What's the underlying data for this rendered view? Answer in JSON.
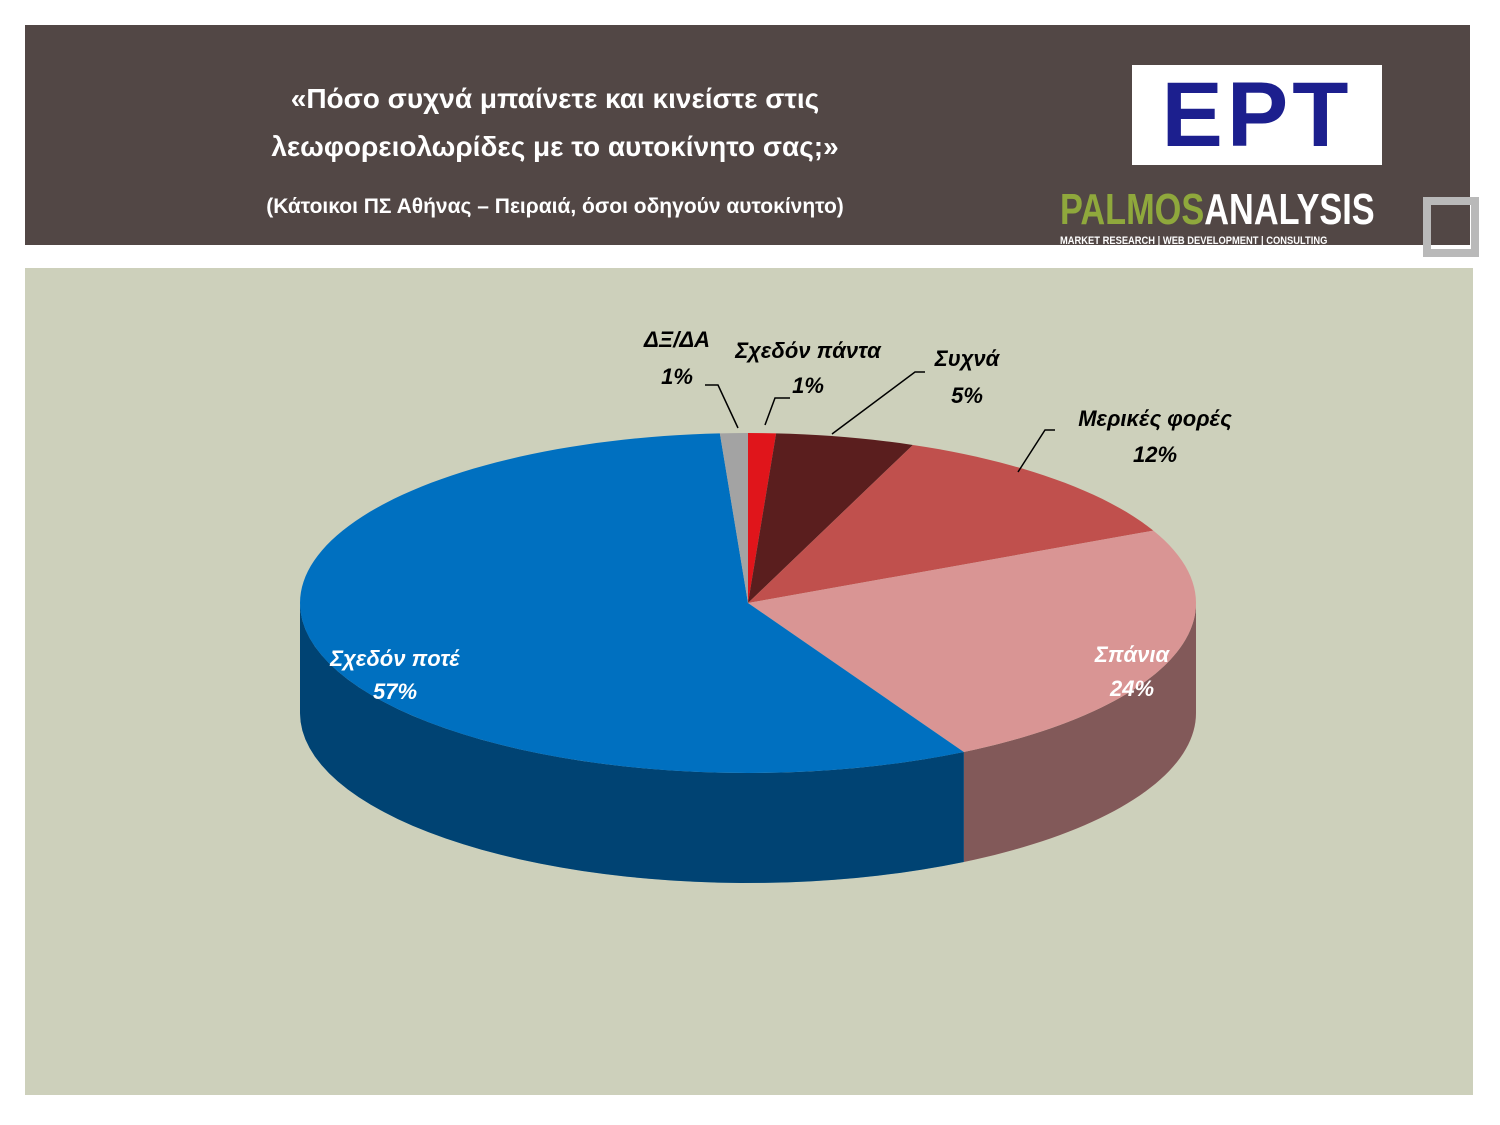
{
  "header": {
    "title": "«Πόσο συχνά μπαίνετε και κινείστε στις λεωφορειολωρίδες με το αυτοκίνητο σας;»",
    "subtitle": "(Κάτοικοι ΠΣ Αθήνας – Πειραιά, όσοι οδηγούν αυτοκίνητο)"
  },
  "logos": {
    "ert": "ΕΡΤ",
    "palmos": "PALMOS",
    "analysis": "ANALYSIS",
    "tagline": "MARKET RESEARCH | WEB DEVELOPMENT | CONSULTING"
  },
  "chart_data": {
    "type": "pie",
    "categories": [
      "Σχεδόν πάντα",
      "Συχνά",
      "Μερικές φορές",
      "Σπάνια",
      "Σχεδόν ποτέ",
      "ΔΞ/ΔΑ"
    ],
    "values": [
      1,
      5,
      12,
      24,
      57,
      1
    ],
    "value_labels": [
      "1%",
      "5%",
      "12%",
      "24%",
      "57%",
      "1%"
    ],
    "colors": [
      "#e0151b",
      "#5a1e1e",
      "#c0504d",
      "#d99594",
      "#0070c0",
      "#a3a3a3"
    ]
  }
}
